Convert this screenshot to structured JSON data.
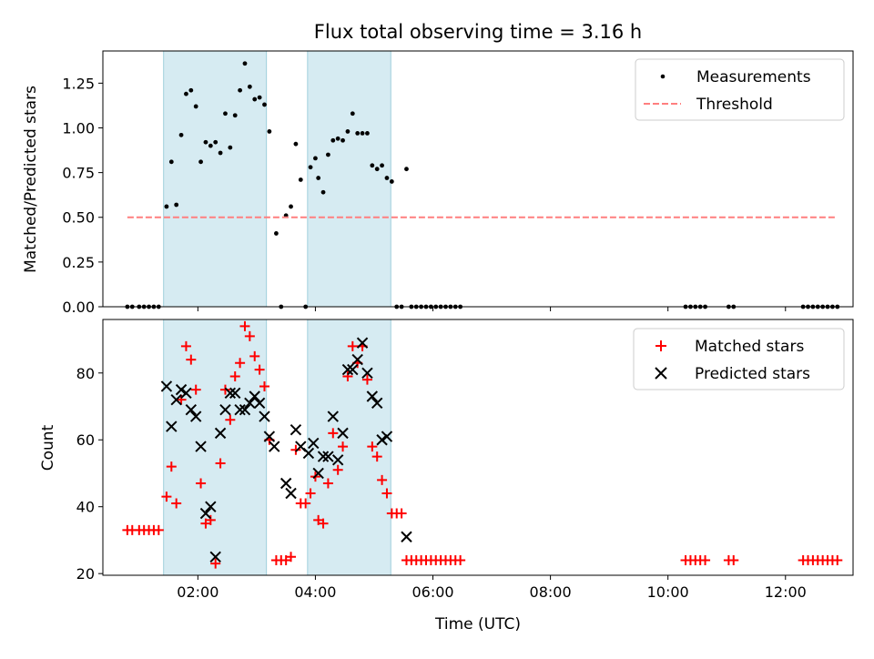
{
  "chart_data": [
    {
      "type": "scatter",
      "title": "Flux total observing time = 3.16 h",
      "xlabel": "",
      "ylabel": "Matched/Predicted stars",
      "xlim": [
        "00:23",
        "13:09"
      ],
      "ylim": [
        0,
        1.43
      ],
      "yticks": [
        "0.00",
        "0.25",
        "0.50",
        "0.75",
        "1.00",
        "1.25"
      ],
      "xticks": [
        "02:00",
        "04:00",
        "06:00",
        "08:00",
        "10:00",
        "12:00"
      ],
      "legend": {
        "placement": "top-right",
        "entries": [
          "Measurements",
          "Threshold"
        ]
      },
      "shaded_intervals": [
        [
          "01:25",
          "03:10"
        ],
        [
          "03:52",
          "05:17"
        ]
      ],
      "series": [
        {
          "name": "Measurements",
          "marker": "dot",
          "color": "#000000",
          "points": [
            [
              "00:48",
              0
            ],
            [
              "00:53",
              0
            ],
            [
              "01:00",
              0
            ],
            [
              "01:05",
              0
            ],
            [
              "01:10",
              0
            ],
            [
              "01:15",
              0
            ],
            [
              "01:20",
              0
            ],
            [
              "01:28",
              0.56
            ],
            [
              "01:33",
              0.81
            ],
            [
              "01:38",
              0.57
            ],
            [
              "01:43",
              0.96
            ],
            [
              "01:48",
              1.19
            ],
            [
              "01:53",
              1.21
            ],
            [
              "01:58",
              1.12
            ],
            [
              "02:03",
              0.81
            ],
            [
              "02:08",
              0.92
            ],
            [
              "02:13",
              0.9
            ],
            [
              "02:18",
              0.92
            ],
            [
              "02:23",
              0.86
            ],
            [
              "02:28",
              1.08
            ],
            [
              "02:33",
              0.89
            ],
            [
              "02:38",
              1.07
            ],
            [
              "02:43",
              1.21
            ],
            [
              "02:48",
              1.36
            ],
            [
              "02:53",
              1.23
            ],
            [
              "02:58",
              1.16
            ],
            [
              "03:03",
              1.17
            ],
            [
              "03:08",
              1.13
            ],
            [
              "03:13",
              0.98
            ],
            [
              "03:20",
              0.41
            ],
            [
              "03:25",
              0
            ],
            [
              "03:30",
              0.51
            ],
            [
              "03:35",
              0.56
            ],
            [
              "03:40",
              0.91
            ],
            [
              "03:45",
              0.71
            ],
            [
              "03:50",
              0
            ],
            [
              "03:55",
              0.78
            ],
            [
              "04:00",
              0.83
            ],
            [
              "04:03",
              0.72
            ],
            [
              "04:08",
              0.64
            ],
            [
              "04:13",
              0.85
            ],
            [
              "04:18",
              0.93
            ],
            [
              "04:23",
              0.94
            ],
            [
              "04:28",
              0.93
            ],
            [
              "04:33",
              0.98
            ],
            [
              "04:38",
              1.08
            ],
            [
              "04:43",
              0.97
            ],
            [
              "04:48",
              0.97
            ],
            [
              "04:53",
              0.97
            ],
            [
              "04:58",
              0.79
            ],
            [
              "05:03",
              0.77
            ],
            [
              "05:08",
              0.79
            ],
            [
              "05:13",
              0.72
            ],
            [
              "05:18",
              0.7
            ],
            [
              "05:23",
              0
            ],
            [
              "05:28",
              0
            ],
            [
              "05:33",
              0.77
            ],
            [
              "05:38",
              0
            ],
            [
              "05:43",
              0
            ],
            [
              "05:48",
              0
            ],
            [
              "05:53",
              0
            ],
            [
              "05:58",
              0
            ],
            [
              "06:03",
              0
            ],
            [
              "06:08",
              0
            ],
            [
              "06:13",
              0
            ],
            [
              "06:18",
              0
            ],
            [
              "06:23",
              0
            ],
            [
              "06:28",
              0
            ],
            [
              "10:18",
              0
            ],
            [
              "10:23",
              0
            ],
            [
              "10:28",
              0
            ],
            [
              "10:33",
              0
            ],
            [
              "10:38",
              0
            ],
            [
              "11:02",
              0
            ],
            [
              "11:07",
              0
            ],
            [
              "12:18",
              0
            ],
            [
              "12:23",
              0
            ],
            [
              "12:28",
              0
            ],
            [
              "12:33",
              0
            ],
            [
              "12:38",
              0
            ],
            [
              "12:43",
              0
            ],
            [
              "12:48",
              0
            ],
            [
              "12:53",
              0
            ]
          ]
        },
        {
          "name": "Threshold",
          "marker": "dashed-line",
          "color": "#ff7f7f",
          "points": [
            [
              "00:48",
              0.5
            ],
            [
              "12:53",
              0.5
            ]
          ]
        }
      ]
    },
    {
      "type": "scatter",
      "title": "",
      "xlabel": "Time (UTC)",
      "ylabel": "Count",
      "xlim": [
        "00:23",
        "13:09"
      ],
      "ylim": [
        19.5,
        96
      ],
      "yticks": [
        "20",
        "40",
        "60",
        "80"
      ],
      "xticks": [
        "02:00",
        "04:00",
        "06:00",
        "08:00",
        "10:00",
        "12:00"
      ],
      "legend": {
        "placement": "top-right",
        "entries": [
          "Matched stars",
          "Predicted stars"
        ]
      },
      "shaded_intervals": [
        [
          "01:25",
          "03:10"
        ],
        [
          "03:52",
          "05:17"
        ]
      ],
      "series": [
        {
          "name": "Matched stars",
          "marker": "plus",
          "color": "#ff0000",
          "points": [
            [
              "00:48",
              33
            ],
            [
              "00:53",
              33
            ],
            [
              "01:00",
              33
            ],
            [
              "01:05",
              33
            ],
            [
              "01:10",
              33
            ],
            [
              "01:15",
              33
            ],
            [
              "01:20",
              33
            ],
            [
              "01:28",
              43
            ],
            [
              "01:33",
              52
            ],
            [
              "01:38",
              41
            ],
            [
              "01:43",
              72
            ],
            [
              "01:48",
              88
            ],
            [
              "01:53",
              84
            ],
            [
              "01:58",
              75
            ],
            [
              "02:03",
              47
            ],
            [
              "02:08",
              35
            ],
            [
              "02:13",
              36
            ],
            [
              "02:18",
              23
            ],
            [
              "02:23",
              53
            ],
            [
              "02:28",
              75
            ],
            [
              "02:33",
              66
            ],
            [
              "02:38",
              79
            ],
            [
              "02:43",
              83
            ],
            [
              "02:48",
              94
            ],
            [
              "02:53",
              91
            ],
            [
              "02:58",
              85
            ],
            [
              "03:03",
              81
            ],
            [
              "03:08",
              76
            ],
            [
              "03:13",
              60
            ],
            [
              "03:20",
              24
            ],
            [
              "03:25",
              24
            ],
            [
              "03:30",
              24
            ],
            [
              "03:35",
              25
            ],
            [
              "03:40",
              57
            ],
            [
              "03:45",
              41
            ],
            [
              "03:50",
              41
            ],
            [
              "03:55",
              44
            ],
            [
              "04:00",
              49
            ],
            [
              "04:03",
              36
            ],
            [
              "04:08",
              35
            ],
            [
              "04:13",
              47
            ],
            [
              "04:18",
              62
            ],
            [
              "04:23",
              51
            ],
            [
              "04:28",
              58
            ],
            [
              "04:33",
              79
            ],
            [
              "04:38",
              88
            ],
            [
              "04:43",
              83
            ],
            [
              "04:48",
              88
            ],
            [
              "04:53",
              78
            ],
            [
              "04:58",
              58
            ],
            [
              "05:03",
              55
            ],
            [
              "05:08",
              48
            ],
            [
              "05:13",
              44
            ],
            [
              "05:18",
              38
            ],
            [
              "05:23",
              38
            ],
            [
              "05:28",
              38
            ],
            [
              "05:33",
              24
            ],
            [
              "05:38",
              24
            ],
            [
              "05:43",
              24
            ],
            [
              "05:48",
              24
            ],
            [
              "05:53",
              24
            ],
            [
              "05:58",
              24
            ],
            [
              "06:03",
              24
            ],
            [
              "06:08",
              24
            ],
            [
              "06:13",
              24
            ],
            [
              "06:18",
              24
            ],
            [
              "06:23",
              24
            ],
            [
              "06:28",
              24
            ],
            [
              "10:18",
              24
            ],
            [
              "10:23",
              24
            ],
            [
              "10:28",
              24
            ],
            [
              "10:33",
              24
            ],
            [
              "10:38",
              24
            ],
            [
              "11:02",
              24
            ],
            [
              "11:07",
              24
            ],
            [
              "12:18",
              24
            ],
            [
              "12:23",
              24
            ],
            [
              "12:28",
              24
            ],
            [
              "12:33",
              24
            ],
            [
              "12:38",
              24
            ],
            [
              "12:43",
              24
            ],
            [
              "12:48",
              24
            ],
            [
              "12:53",
              24
            ]
          ]
        },
        {
          "name": "Predicted stars",
          "marker": "x",
          "color": "#000000",
          "points": [
            [
              "01:28",
              76
            ],
            [
              "01:33",
              64
            ],
            [
              "01:38",
              72
            ],
            [
              "01:43",
              75
            ],
            [
              "01:48",
              74
            ],
            [
              "01:53",
              69
            ],
            [
              "01:58",
              67
            ],
            [
              "02:03",
              58
            ],
            [
              "02:08",
              38
            ],
            [
              "02:13",
              40
            ],
            [
              "02:18",
              25
            ],
            [
              "02:23",
              62
            ],
            [
              "02:28",
              69
            ],
            [
              "02:33",
              74
            ],
            [
              "02:38",
              74
            ],
            [
              "02:43",
              69
            ],
            [
              "02:48",
              69
            ],
            [
              "02:53",
              71
            ],
            [
              "02:58",
              73
            ],
            [
              "03:03",
              71
            ],
            [
              "03:08",
              67
            ],
            [
              "03:13",
              61
            ],
            [
              "03:18",
              58
            ],
            [
              "03:30",
              47
            ],
            [
              "03:35",
              44
            ],
            [
              "03:40",
              63
            ],
            [
              "03:45",
              58
            ],
            [
              "03:53",
              56
            ],
            [
              "03:58",
              59
            ],
            [
              "04:03",
              50
            ],
            [
              "04:08",
              55
            ],
            [
              "04:13",
              55
            ],
            [
              "04:18",
              67
            ],
            [
              "04:23",
              54
            ],
            [
              "04:28",
              62
            ],
            [
              "04:33",
              81
            ],
            [
              "04:38",
              81
            ],
            [
              "04:43",
              84
            ],
            [
              "04:48",
              89
            ],
            [
              "04:53",
              80
            ],
            [
              "04:58",
              73
            ],
            [
              "05:03",
              71
            ],
            [
              "05:08",
              60
            ],
            [
              "05:13",
              61
            ],
            [
              "05:33",
              31
            ]
          ]
        }
      ]
    }
  ]
}
